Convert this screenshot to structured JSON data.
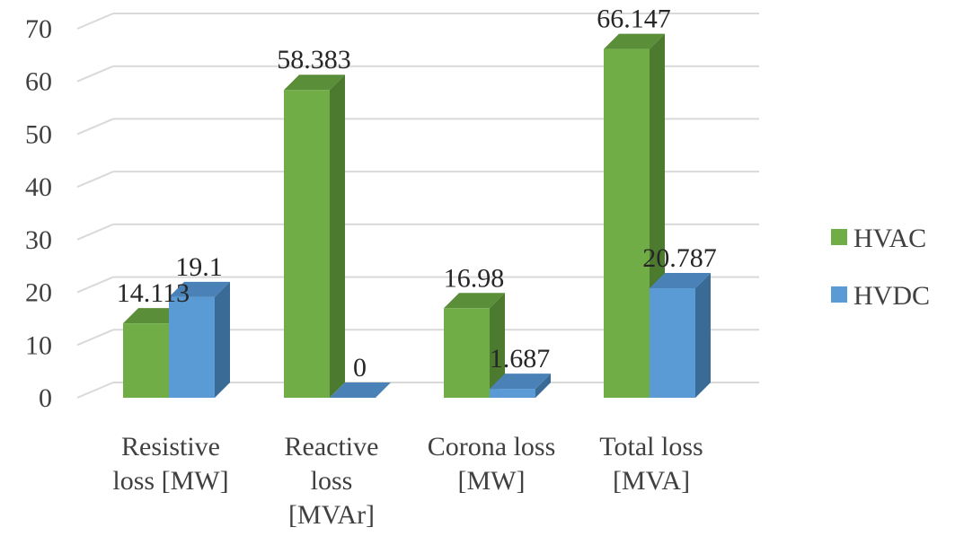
{
  "chart_data": {
    "type": "bar",
    "style": "3d-clustered-column",
    "title": "",
    "xlabel": "",
    "ylabel": "",
    "ylim": [
      0,
      70
    ],
    "yticks": [
      0,
      10,
      20,
      30,
      40,
      50,
      60,
      70
    ],
    "grid": true,
    "legend_position": "right",
    "categories": [
      [
        "Resistive",
        "loss [MW]"
      ],
      [
        "Reactive",
        "loss",
        "[MVAr]"
      ],
      [
        "Corona loss",
        "[MW]"
      ],
      [
        "Total loss",
        "[MVA]"
      ]
    ],
    "series": [
      {
        "name": "HVAC",
        "color": "#70AD47",
        "side_color": "#4C7A2E",
        "top_color": "#5A8E38",
        "values": [
          14.113,
          58.383,
          16.98,
          66.147
        ],
        "labels": [
          "14.113",
          "58.383",
          "16.98",
          "66.147"
        ]
      },
      {
        "name": "HVDC",
        "color": "#5B9BD5",
        "side_color": "#3A6A96",
        "top_color": "#4A82B8",
        "values": [
          19.1,
          0,
          1.687,
          20.787
        ],
        "labels": [
          "19.1",
          "0",
          "1.687",
          "20.787"
        ]
      }
    ]
  }
}
